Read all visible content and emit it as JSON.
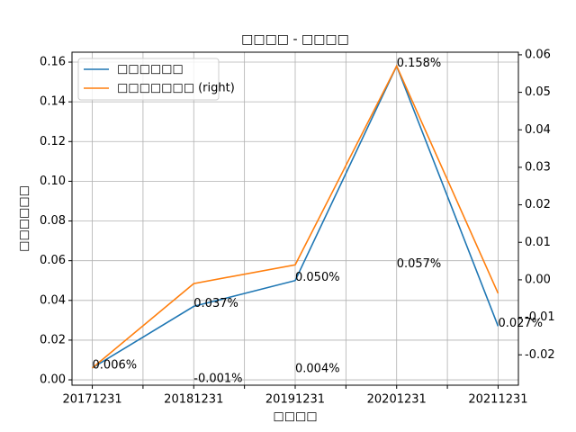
{
  "chart_data": {
    "type": "line",
    "title": "□□□□ - □□□□",
    "x_label": "□□□□",
    "y_label": "□□□□□□",
    "categories": [
      "20171231",
      "20181231",
      "20191231",
      "20201231",
      "20211231"
    ],
    "series": [
      {
        "name": "□□□□□□",
        "color": "#1f77b4",
        "values": [
          0.006,
          0.037,
          0.05,
          0.158,
          0.027
        ],
        "value_labels": [
          "0.006%",
          "0.037%",
          "0.050%",
          "0.158%",
          "0.027%"
        ]
      },
      {
        "name": "□□□□□□□ (right)",
        "color": "#ff7f0e",
        "axis": "y2",
        "values": [
          -0.0235,
          -0.001,
          0.004,
          0.057,
          -0.0036
        ],
        "value_labels": [
          null,
          "-0.001%",
          "0.004%",
          "0.057%",
          null
        ]
      }
    ],
    "ylim": [
      -0.0027,
      0.165
    ],
    "yticks": [
      {
        "value": 0,
        "label": "0.00"
      },
      0.02,
      0.04,
      0.06,
      0.08,
      {
        "value": 0.1,
        "label": "0.10"
      },
      0.12,
      0.14,
      0.16
    ],
    "y2lim": [
      -0.0281,
      0.0607
    ],
    "y2ticks": [
      -0.02,
      -0.01,
      {
        "value": 0,
        "label": "0.00"
      },
      0.01,
      0.02,
      0.03,
      0.04,
      0.05,
      0.06
    ],
    "grid": true,
    "legend": "upper-left"
  }
}
